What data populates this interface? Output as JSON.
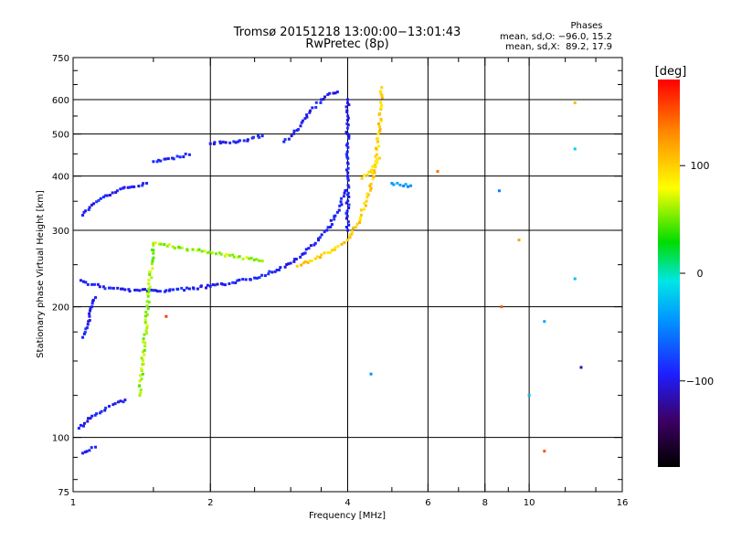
{
  "chart_data": {
    "type": "scatter",
    "title": "Tromsø 20151218 13:00:00−13:01:43",
    "subtitle": "RwPretec (8p)",
    "stats": {
      "heading": "Phases",
      "line_o": "mean, sd,O: −96.0, 15.2",
      "line_x": "mean, sd,X:  89.2, 17.9"
    },
    "xlabel": "Frequency [MHz]",
    "ylabel": "Stationary phase Virtual Height [km]",
    "x_scale": "log",
    "y_scale": "log",
    "xlim": [
      1,
      16
    ],
    "ylim": [
      75,
      750
    ],
    "x_ticks": [
      1,
      2,
      4,
      6,
      8,
      10,
      16
    ],
    "x_tick_labels": [
      "1",
      "2",
      "4",
      "6",
      "8",
      "10",
      "16"
    ],
    "y_ticks": [
      75,
      100,
      200,
      300,
      400,
      500,
      600,
      750
    ],
    "y_tick_labels": [
      "75",
      "100",
      "200",
      "300",
      "400",
      "500",
      "600",
      "750"
    ],
    "x_grid": [
      2,
      4,
      6,
      8,
      10
    ],
    "y_grid": [
      100,
      200,
      300,
      400,
      500,
      600
    ],
    "colorbar": {
      "label": "[deg]",
      "range": [
        -180,
        180
      ],
      "ticks": [
        100,
        0,
        -100
      ],
      "tick_labels": [
        "100",
        "0",
        "−100"
      ]
    },
    "traces": [
      {
        "name": "",
        "phase": -100,
        "points": [
          [
            1.04,
            230
          ],
          [
            1.1,
            225
          ],
          [
            1.2,
            221
          ],
          [
            1.3,
            219
          ],
          [
            1.4,
            218
          ],
          [
            1.6,
            218
          ],
          [
            1.8,
            220
          ],
          [
            2.0,
            223
          ],
          [
            2.2,
            226
          ],
          [
            2.5,
            233
          ],
          [
            2.8,
            243
          ],
          [
            3.0,
            252
          ],
          [
            3.2,
            265
          ],
          [
            3.4,
            280
          ],
          [
            3.6,
            300
          ],
          [
            3.8,
            330
          ],
          [
            3.95,
            370
          ]
        ]
      },
      {
        "name": "",
        "phase": -100,
        "points": [
          [
            2.9,
            480
          ],
          [
            3.1,
            510
          ],
          [
            3.3,
            560
          ],
          [
            3.5,
            600
          ],
          [
            3.65,
            620
          ],
          [
            3.8,
            625
          ]
        ]
      },
      {
        "name": "",
        "phase": -100,
        "points": [
          [
            1.05,
            325
          ],
          [
            1.15,
            355
          ],
          [
            1.25,
            370
          ],
          [
            1.35,
            378
          ],
          [
            1.45,
            385
          ]
        ]
      },
      {
        "name": "",
        "phase": -100,
        "points": [
          [
            1.5,
            432
          ],
          [
            1.65,
            440
          ],
          [
            1.8,
            448
          ]
        ]
      },
      {
        "name": "",
        "phase": -100,
        "points": [
          [
            2.0,
            475
          ],
          [
            2.3,
            480
          ],
          [
            2.6,
            495
          ]
        ]
      },
      {
        "name": "",
        "phase": -100,
        "points": [
          [
            1.05,
            170
          ],
          [
            1.08,
            185
          ],
          [
            1.1,
            200
          ],
          [
            1.12,
            210
          ]
        ]
      },
      {
        "name": "",
        "phase": -100,
        "points": [
          [
            1.03,
            105
          ],
          [
            1.1,
            112
          ],
          [
            1.2,
            118
          ],
          [
            1.3,
            122
          ]
        ]
      },
      {
        "name": "",
        "phase": -100,
        "points": [
          [
            1.05,
            92
          ],
          [
            1.12,
            95
          ]
        ]
      },
      {
        "name": "",
        "phase": -100,
        "points": [
          [
            4.0,
            300
          ],
          [
            4.0,
            400
          ],
          [
            4.0,
            500
          ],
          [
            4.0,
            600
          ]
        ]
      },
      {
        "name": "",
        "phase": 100,
        "points": [
          [
            3.1,
            248
          ],
          [
            3.4,
            258
          ],
          [
            3.7,
            270
          ],
          [
            4.0,
            285
          ],
          [
            4.2,
            310
          ],
          [
            4.4,
            350
          ],
          [
            4.6,
            420
          ],
          [
            4.7,
            520
          ],
          [
            4.75,
            640
          ]
        ]
      },
      {
        "name": "",
        "phase": 100,
        "points": [
          [
            4.3,
            395
          ],
          [
            4.5,
            410
          ],
          [
            4.7,
            440
          ]
        ]
      },
      {
        "name": "",
        "phase": -50,
        "points": [
          [
            5.0,
            385
          ],
          [
            5.5,
            380
          ]
        ]
      },
      {
        "name": "",
        "phase": 60,
        "points": [
          [
            1.4,
            125
          ],
          [
            1.5,
            280
          ],
          [
            2.6,
            255
          ]
        ]
      }
    ],
    "isolated_points": [
      {
        "x": 1.6,
        "y": 190,
        "phase": 160
      },
      {
        "x": 6.3,
        "y": 410,
        "phase": 140
      },
      {
        "x": 8.6,
        "y": 370,
        "phase": -60
      },
      {
        "x": 9.5,
        "y": 285,
        "phase": 120
      },
      {
        "x": 8.7,
        "y": 200,
        "phase": 150
      },
      {
        "x": 10.8,
        "y": 185,
        "phase": -40
      },
      {
        "x": 10.0,
        "y": 125,
        "phase": -30
      },
      {
        "x": 10.8,
        "y": 93,
        "phase": 150
      },
      {
        "x": 12.6,
        "y": 590,
        "phase": 110
      },
      {
        "x": 12.6,
        "y": 462,
        "phase": -20
      },
      {
        "x": 12.6,
        "y": 232,
        "phase": -30
      },
      {
        "x": 13.0,
        "y": 145,
        "phase": -120
      },
      {
        "x": 4.5,
        "y": 140,
        "phase": -50
      }
    ]
  }
}
